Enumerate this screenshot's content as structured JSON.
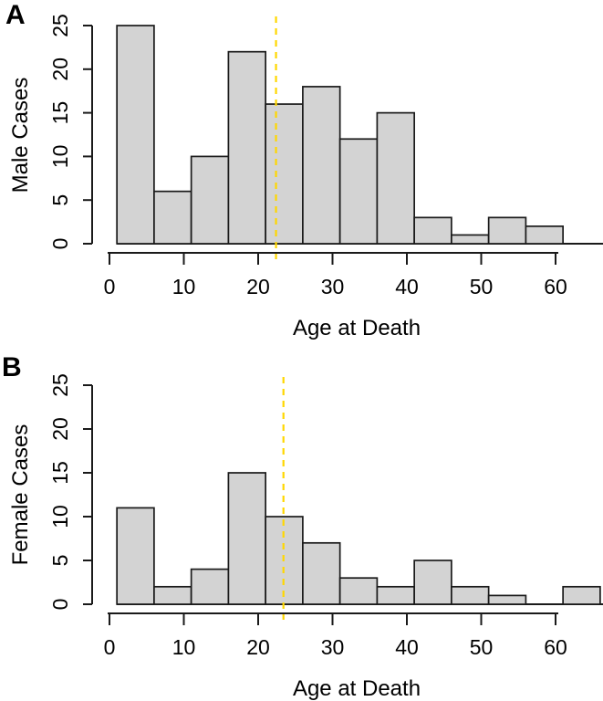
{
  "figure": {
    "background": "#FFFFFF",
    "panels": [
      {
        "panel_label": "A",
        "ylabel": "Male Cases",
        "xlabel": "Age at Death"
      },
      {
        "panel_label": "B",
        "ylabel": "Female Cases",
        "xlabel": "Age at Death"
      }
    ]
  },
  "colors": {
    "bar_fill": "#D3D3D3",
    "bar_stroke": "#1A1A1A",
    "axis": "#1A1A1A",
    "text": "#000000",
    "reference_line": "#FFD700"
  },
  "chart_data": [
    {
      "type": "bar",
      "subtype": "histogram",
      "panel": "A",
      "title": "",
      "xlabel": "Age at Death",
      "ylabel": "Male Cases",
      "bin_width": 5,
      "bin_edges": [
        1,
        6,
        11,
        16,
        21,
        26,
        31,
        36,
        41,
        46,
        51,
        56,
        61
      ],
      "values": [
        25,
        6,
        10,
        22,
        16,
        18,
        12,
        15,
        3,
        1,
        3,
        2
      ],
      "x_ticks": [
        0,
        10,
        20,
        30,
        40,
        50,
        60
      ],
      "y_ticks": [
        0,
        5,
        10,
        15,
        20,
        25
      ],
      "xlim": [
        0,
        66
      ],
      "ylim": [
        0,
        25
      ],
      "grid": false,
      "legend": null,
      "reference_line": {
        "x": 22.4,
        "style": "dashed",
        "color": "#FFD700"
      }
    },
    {
      "type": "bar",
      "subtype": "histogram",
      "panel": "B",
      "title": "",
      "xlabel": "Age at Death",
      "ylabel": "Female Cases",
      "bin_width": 5,
      "bin_edges": [
        1,
        6,
        11,
        16,
        21,
        26,
        31,
        36,
        41,
        46,
        51,
        56,
        61,
        66
      ],
      "values": [
        11,
        2,
        4,
        15,
        10,
        7,
        3,
        2,
        5,
        2,
        1,
        0,
        2
      ],
      "x_ticks": [
        0,
        10,
        20,
        30,
        40,
        50,
        60
      ],
      "y_ticks": [
        0,
        5,
        10,
        15,
        20,
        25
      ],
      "xlim": [
        0,
        66
      ],
      "ylim": [
        0,
        25
      ],
      "grid": false,
      "legend": null,
      "reference_line": {
        "x": 23.4,
        "style": "dashed",
        "color": "#FFD700"
      }
    }
  ]
}
